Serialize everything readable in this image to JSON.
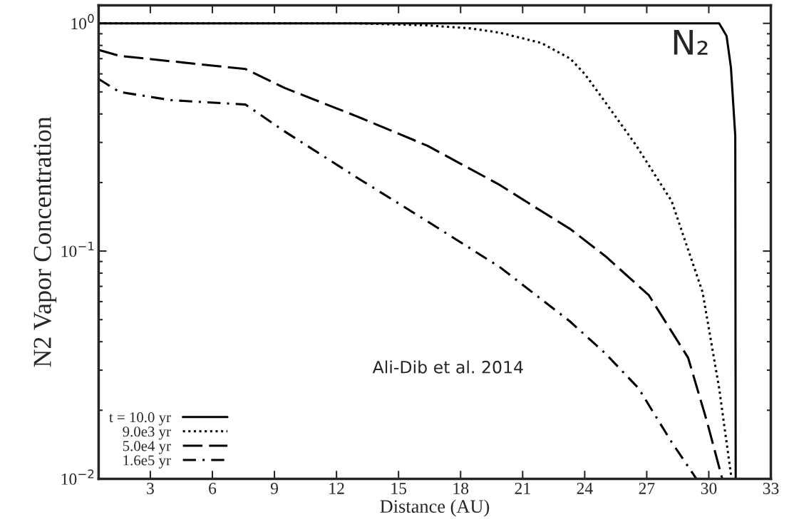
{
  "chart_data": {
    "type": "line",
    "xlabel": "Distance (AU)",
    "ylabel": "N2 Vapor Concentration",
    "log": "y",
    "xlim": [
      0.5,
      33
    ],
    "xticks": [
      3,
      6,
      9,
      12,
      15,
      18,
      21,
      24,
      27,
      30,
      33
    ],
    "ylim": [
      0.01,
      1.2
    ],
    "yticks": [
      {
        "value": 1,
        "label": "10$^{0}$"
      },
      {
        "value": 0.1,
        "label": "10$^{−1}$"
      },
      {
        "value": 0.01,
        "label": "10$^{−2}$"
      }
    ],
    "grid": false,
    "legend": "bottom left",
    "series": [
      {
        "name": "t = 10.0 yr",
        "color": "#000000",
        "line_style": "solid",
        "x": [
          0.5,
          5,
          10,
          15,
          20,
          25,
          30.5,
          30.86,
          31.07,
          31.28,
          31.3
        ],
        "values": [
          1,
          1,
          1,
          1,
          1,
          1,
          1,
          0.88,
          0.64,
          0.32,
          0.01
        ]
      },
      {
        "name": "9.0e3 yr",
        "color": "#000000",
        "line_style": "dotted",
        "x": [
          0.5,
          5,
          10,
          13,
          16.4,
          18.5,
          19.9,
          21.9,
          23.3,
          24,
          25,
          26.5,
          28.2,
          29.7,
          30.5,
          31.1
        ],
        "values": [
          1,
          1,
          1,
          1,
          0.98,
          0.95,
          0.91,
          0.82,
          0.7,
          0.6,
          0.45,
          0.29,
          0.166,
          0.066,
          0.025,
          0.01
        ]
      },
      {
        "name": "5.0e4 yr",
        "color": "#000000",
        "line_style": "dashed",
        "x": [
          0.5,
          1.5,
          7.6,
          9.5,
          13,
          16.4,
          19.9,
          21.5,
          23.3,
          25,
          27.1,
          29,
          29.9,
          30.65
        ],
        "values": [
          0.765,
          0.72,
          0.63,
          0.52,
          0.39,
          0.29,
          0.195,
          0.158,
          0.125,
          0.095,
          0.064,
          0.034,
          0.018,
          0.01
        ]
      },
      {
        "name": "1.6e5 yr",
        "color": "#000000",
        "line_style": "dashdot",
        "x": [
          0.5,
          1.5,
          4,
          7.6,
          9.5,
          13,
          16.4,
          19.9,
          23.3,
          25,
          26.6,
          28.2,
          29.4
        ],
        "values": [
          0.57,
          0.5,
          0.46,
          0.44,
          0.335,
          0.21,
          0.135,
          0.085,
          0.049,
          0.0355,
          0.025,
          0.0145,
          0.01
        ]
      }
    ],
    "annotations": [
      "N₂",
      "Ali-Dib et al. 2014"
    ]
  }
}
